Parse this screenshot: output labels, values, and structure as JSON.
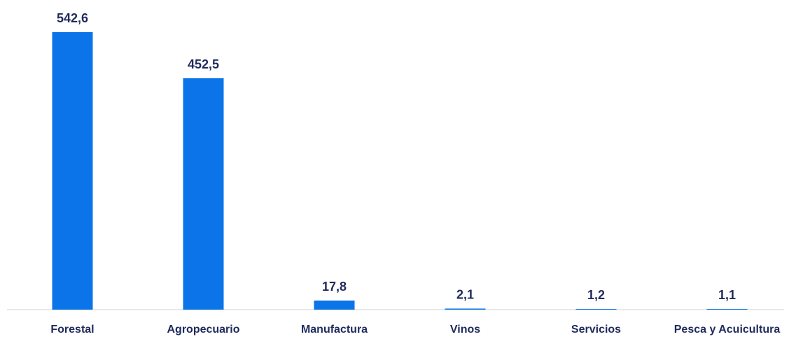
{
  "chart_data": {
    "type": "bar",
    "title": "",
    "xlabel": "",
    "ylabel": "",
    "categories": [
      "Forestal",
      "Agropecuario",
      "Manufactura",
      "Vinos",
      "Servicios",
      "Pesca y Acuicultura"
    ],
    "values": [
      542.6,
      452.5,
      17.8,
      2.1,
      1.2,
      1.1
    ],
    "value_labels": [
      "542,6",
      "452,5",
      "17,8",
      "2,1",
      "1,2",
      "1,1"
    ],
    "ylim": [
      0,
      542.6
    ],
    "grid": false,
    "legend": "none",
    "colors": {
      "bar": "#0a74e8",
      "text": "#1f2a5c",
      "axis": "#d0d0d0"
    }
  }
}
